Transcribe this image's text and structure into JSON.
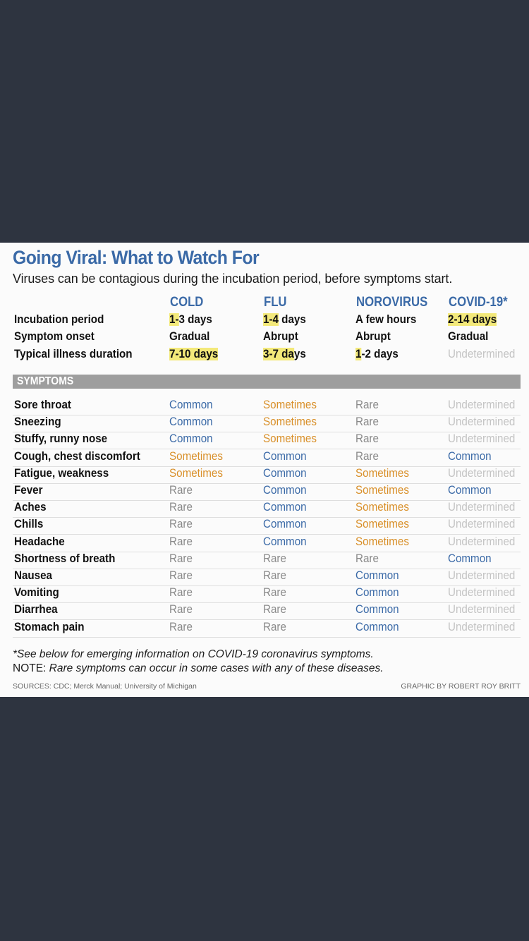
{
  "title": "Going Viral: What to Watch For",
  "subtitle": "Viruses can be contagious during the incubation period, before symptoms start.",
  "colors": {
    "background": "#2e3440",
    "title": "#3b6aa7",
    "common": "#3b6aa7",
    "sometimes": "#d9902a",
    "rare": "#8a8a8a",
    "undetermined": "#c4c4c4",
    "highlight": "#f3e97a",
    "section_bar": "#9e9e9e"
  },
  "columns": [
    "COLD",
    "FLU",
    "NOROVIRUS",
    "COVID-19*"
  ],
  "overview": [
    {
      "label": "Incubation period",
      "values": [
        {
          "hl": "1-",
          "rest": "3 days"
        },
        {
          "hl": "1-4",
          "rest": " days"
        },
        {
          "hl": "",
          "rest": "A few hours"
        },
        {
          "hl": "2-14 days",
          "rest": ""
        }
      ]
    },
    {
      "label": "Symptom onset",
      "values": [
        {
          "hl": "",
          "rest": "Gradual"
        },
        {
          "hl": "",
          "rest": "Abrupt"
        },
        {
          "hl": "",
          "rest": "Abrupt"
        },
        {
          "hl": "",
          "rest": "Gradual"
        }
      ]
    },
    {
      "label": "Typical illness duration",
      "values": [
        {
          "hl": "7-10 days",
          "rest": ""
        },
        {
          "hl": "3-7 da",
          "rest": "ys"
        },
        {
          "hl": "1",
          "rest": "-2 days"
        },
        {
          "hl": "",
          "rest": "Undetermined",
          "undet": true
        }
      ]
    }
  ],
  "symptoms_header": "SYMPTOMS",
  "symptoms": [
    {
      "name": "Sore throat",
      "values": [
        "Common",
        "Sometimes",
        "Rare",
        "Undetermined"
      ]
    },
    {
      "name": "Sneezing",
      "values": [
        "Common",
        "Sometimes",
        "Rare",
        "Undetermined"
      ]
    },
    {
      "name": "Stuffy, runny nose",
      "values": [
        "Common",
        "Sometimes",
        "Rare",
        "Undetermined"
      ]
    },
    {
      "name": "Cough, chest discomfort",
      "values": [
        "Sometimes",
        "Common",
        "Rare",
        "Common"
      ]
    },
    {
      "name": "Fatigue, weakness",
      "values": [
        "Sometimes",
        "Common",
        "Sometimes",
        "Undetermined"
      ]
    },
    {
      "name": "Fever",
      "values": [
        "Rare",
        "Common",
        "Sometimes",
        "Common"
      ]
    },
    {
      "name": "Aches",
      "values": [
        "Rare",
        "Common",
        "Sometimes",
        "Undetermined"
      ]
    },
    {
      "name": "Chills",
      "values": [
        "Rare",
        "Common",
        "Sometimes",
        "Undetermined"
      ]
    },
    {
      "name": "Headache",
      "values": [
        "Rare",
        "Common",
        "Sometimes",
        "Undetermined"
      ]
    },
    {
      "name": "Shortness of breath",
      "values": [
        "Rare",
        "Rare",
        "Rare",
        "Common"
      ]
    },
    {
      "name": "Nausea",
      "values": [
        "Rare",
        "Rare",
        "Common",
        "Undetermined"
      ]
    },
    {
      "name": "Vomiting",
      "values": [
        "Rare",
        "Rare",
        "Common",
        "Undetermined"
      ]
    },
    {
      "name": "Diarrhea",
      "values": [
        "Rare",
        "Rare",
        "Common",
        "Undetermined"
      ]
    },
    {
      "name": "Stomach pain",
      "values": [
        "Rare",
        "Rare",
        "Common",
        "Undetermined"
      ]
    }
  ],
  "footnote": "*See below for emerging information on COVID-19 coronavirus symptoms.",
  "note_prefix": "NOTE:",
  "note_text": " Rare symptoms can occur in some cases with any of these diseases.",
  "sources": "SOURCES: CDC; Merck Manual; University of Michigan",
  "credit": "GRAPHIC BY ROBERT ROY BRITT"
}
